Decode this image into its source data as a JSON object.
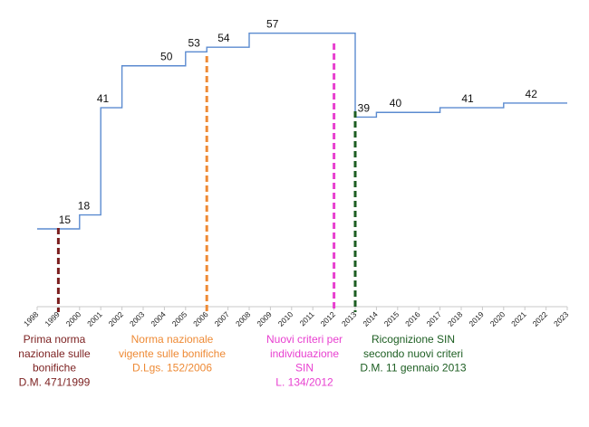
{
  "chart_data": {
    "type": "line",
    "step": true,
    "title": "",
    "xlabel": "",
    "ylabel": "",
    "x": [
      "1998",
      "1999",
      "2000",
      "2001",
      "2002",
      "2003",
      "2004",
      "2005",
      "2006",
      "2007",
      "2008",
      "2009",
      "2010",
      "2011",
      "2012",
      "2013",
      "2014",
      "2015",
      "2016",
      "2017",
      "2018",
      "2019",
      "2020",
      "2021",
      "2022",
      "2023"
    ],
    "series": [
      {
        "color": "#5b8bd0",
        "points": [
          {
            "x": 1998,
            "y": 15
          },
          {
            "x": 2000,
            "y": 18
          },
          {
            "x": 2001,
            "y": 41
          },
          {
            "x": 2002,
            "y": 50
          },
          {
            "x": 2005,
            "y": 53
          },
          {
            "x": 2006,
            "y": 54
          },
          {
            "x": 2008,
            "y": 57
          },
          {
            "x": 2013,
            "y": 39
          },
          {
            "x": 2014,
            "y": 40
          },
          {
            "x": 2017,
            "y": 41
          },
          {
            "x": 2020,
            "y": 42
          },
          {
            "x": 2023,
            "y": 42
          }
        ]
      }
    ],
    "value_labels": [
      {
        "text": "15",
        "x": 1999.3,
        "y": 15
      },
      {
        "text": "18",
        "x": 2000.2,
        "y": 18
      },
      {
        "text": "41",
        "x": 2001.1,
        "y": 41
      },
      {
        "text": "50",
        "x": 2004.1,
        "y": 50
      },
      {
        "text": "53",
        "x": 2005.4,
        "y": 53
      },
      {
        "text": "54",
        "x": 2006.8,
        "y": 54
      },
      {
        "text": "57",
        "x": 2009.1,
        "y": 57
      },
      {
        "text": "39",
        "x": 2013.4,
        "y": 39
      },
      {
        "text": "40",
        "x": 2014.9,
        "y": 40
      },
      {
        "text": "41",
        "x": 2018.3,
        "y": 41
      },
      {
        "text": "42",
        "x": 2021.3,
        "y": 42
      }
    ],
    "ylim": [
      0,
      65
    ],
    "grid": false,
    "legend": "none",
    "annotations": [
      {
        "x": 1999,
        "color": "#7b1f1f",
        "lines": [
          "Prima norma",
          "nazionale sulle",
          "bonifiche",
          "D.M. 471/1999"
        ]
      },
      {
        "x": 2006,
        "color": "#ee8a35",
        "lines": [
          "Norma nazionale",
          "vigente sulle bonifiche",
          "D.Lgs. 152/2006"
        ]
      },
      {
        "x": 2012,
        "color": "#e83fd0",
        "lines": [
          "Nuovi criteri per",
          "individuazione",
          "SIN",
          "L. 134/2012"
        ]
      },
      {
        "x": 2013,
        "color": "#1d5e22",
        "lines": [
          "Ricognizione SIN",
          "secondo nuovi criteri",
          "D.M. 11 gennaio 2013"
        ]
      }
    ]
  }
}
